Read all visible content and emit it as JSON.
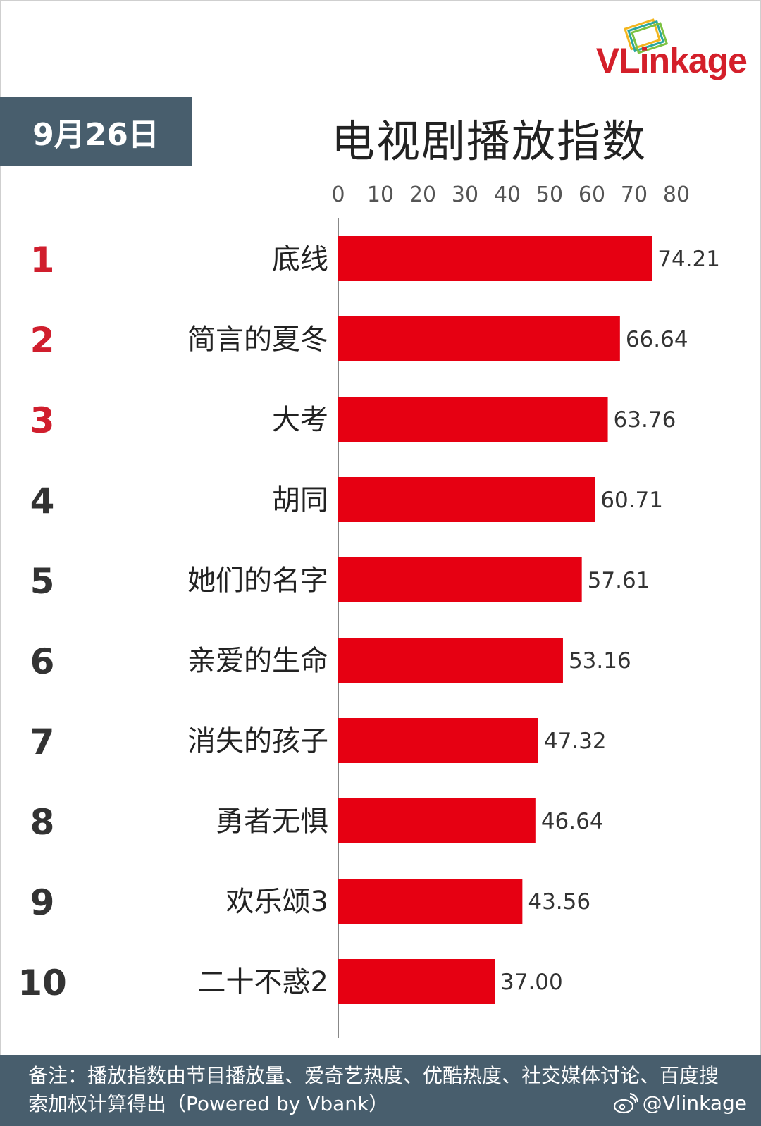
{
  "logo": {
    "text": "VLinkage"
  },
  "header": {
    "date": "9月26日",
    "title": "电视剧播放指数"
  },
  "chart_data": {
    "type": "bar",
    "orientation": "horizontal",
    "title": "电视剧播放指数",
    "ranks": [
      "1",
      "2",
      "3",
      "4",
      "5",
      "6",
      "7",
      "8",
      "9",
      "10"
    ],
    "categories": [
      "底线",
      "简言的夏冬",
      "大考",
      "胡同",
      "她们的名字",
      "亲爱的生命",
      "消失的孩子",
      "勇者无惧",
      "欢乐颂3",
      "二十不惑2"
    ],
    "values": [
      74.21,
      66.64,
      63.76,
      60.71,
      57.61,
      53.16,
      47.32,
      46.64,
      43.56,
      37.0
    ],
    "value_labels": [
      "74.21",
      "66.64",
      "63.76",
      "60.71",
      "57.61",
      "53.16",
      "47.32",
      "46.64",
      "43.56",
      "37.00"
    ],
    "xticks": [
      "0",
      "10",
      "20",
      "30",
      "40",
      "50",
      "60",
      "70",
      "80"
    ],
    "xlim": [
      0,
      80
    ],
    "axis_position": "top",
    "grid": false,
    "bar_color": "#e60012",
    "rank_colors": {
      "top3": "#d01e2d",
      "rest": "#333333"
    }
  },
  "footer": {
    "note": "备注：播放指数由节目播放量、爱奇艺热度、优酷热度、社交媒体讨论、百度搜索加权计算得出（Powered by Vbank）",
    "handle": "@Vlinkage",
    "icon": "weibo-icon"
  }
}
